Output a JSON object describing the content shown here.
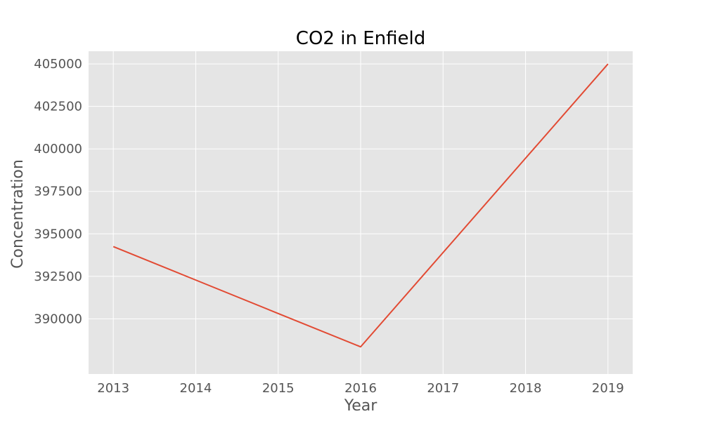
{
  "chart_data": {
    "type": "line",
    "title": "CO2 in Enfield",
    "xlabel": "Year",
    "ylabel": "Concentration",
    "x": [
      2013,
      2014,
      2015,
      2016,
      2017,
      2018,
      2019
    ],
    "series": [
      {
        "values": [
          394250,
          392280,
          390310,
          388350,
          393900,
          399450,
          405000
        ],
        "color": "#E24A33"
      }
    ],
    "xlim": [
      2012.7,
      2019.3
    ],
    "ylim": [
      386750,
      405750
    ],
    "xticks": [
      2013,
      2014,
      2015,
      2016,
      2017,
      2018,
      2019
    ],
    "xtick_labels": [
      "2013",
      "2014",
      "2015",
      "2016",
      "2017",
      "2018",
      "2019"
    ],
    "yticks": [
      390000,
      392500,
      395000,
      397500,
      400000,
      402500,
      405000
    ],
    "ytick_labels": [
      "390000",
      "392500",
      "395000",
      "397500",
      "400000",
      "402500",
      "405000"
    ],
    "grid": true,
    "background_color": "#E5E5E5",
    "grid_color": "#FFFFFF"
  }
}
